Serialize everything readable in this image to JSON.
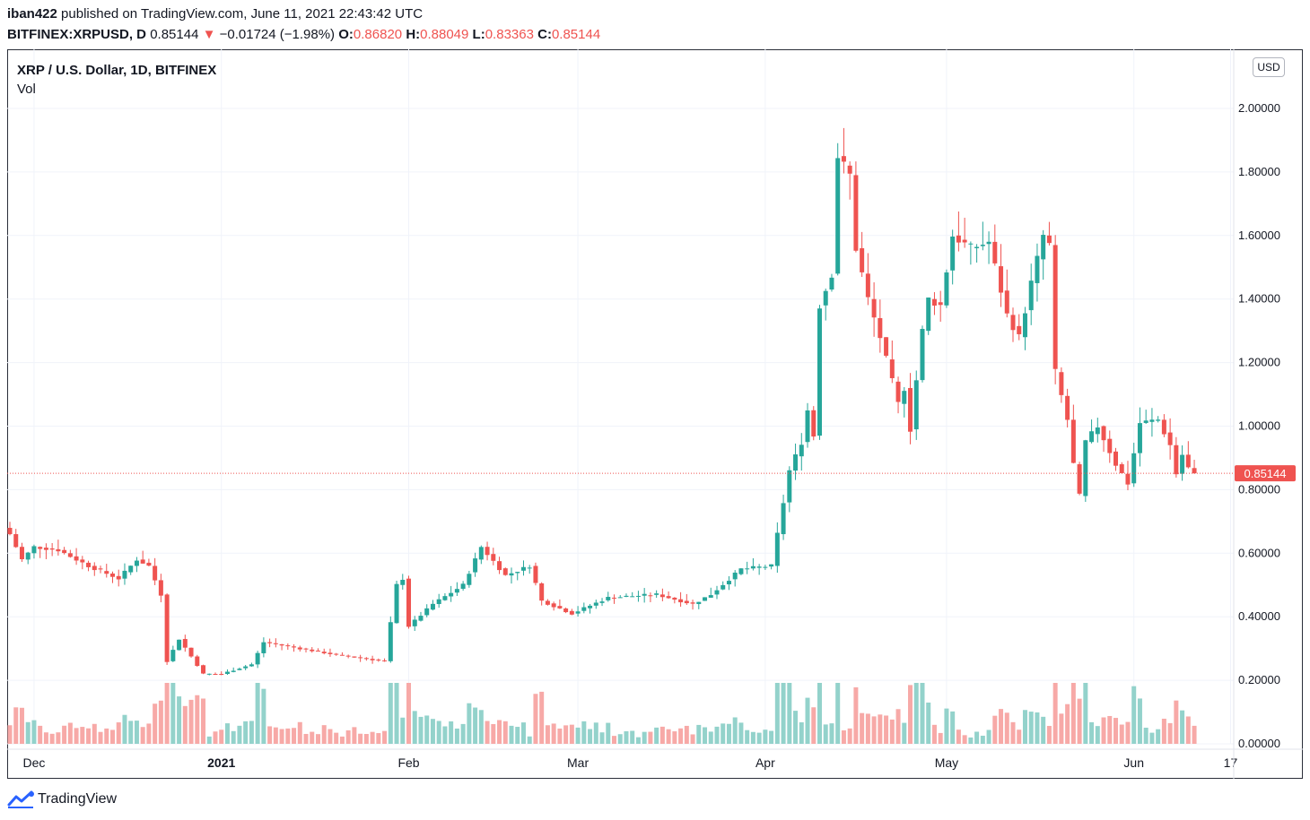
{
  "header": {
    "author": "iban422",
    "published": "published on TradingView.com, June 11, 2021 22:43:42 UTC",
    "symbol": "BITFINEX:XRPUSD, D",
    "last": "0.85144",
    "arrow": "▼",
    "change": "−0.01724 (−1.98%)",
    "open_label": "O:",
    "open": "0.86820",
    "high_label": "H:",
    "high": "0.88049",
    "low_label": "L:",
    "low": "0.83363",
    "close_label": "C:",
    "close": "0.85144"
  },
  "legend": {
    "title": "XRP / U.S. Dollar, 1D, BITFINEX",
    "vol": "Vol"
  },
  "currency_button": "USD",
  "price_tag": "0.85144",
  "footer": {
    "brand": "TradingView"
  },
  "colors": {
    "up": "#26a69a",
    "down": "#ef5350",
    "vol_up": "#93d2cb",
    "vol_down": "#f7a9a7",
    "grid": "#f0f3fa"
  },
  "chart_data": {
    "type": "candlestick",
    "title": "XRP / U.S. Dollar, 1D, BITFINEX",
    "ylim": [
      0,
      2.1
    ],
    "yticks": [
      "2.00000",
      "1.80000",
      "1.60000",
      "1.40000",
      "1.20000",
      "1.00000",
      "0.80000",
      "0.60000",
      "0.40000",
      "0.20000",
      "0.00000"
    ],
    "xticks": [
      {
        "label": "Dec",
        "date": "2020-12-01"
      },
      {
        "label": "2021",
        "date": "2021-01-01"
      },
      {
        "label": "Feb",
        "date": "2021-02-01"
      },
      {
        "label": "Mar",
        "date": "2021-03-01"
      },
      {
        "label": "Apr",
        "date": "2021-04-01"
      },
      {
        "label": "May",
        "date": "2021-05-01"
      },
      {
        "label": "Jun",
        "date": "2021-06-01"
      },
      {
        "label": "17",
        "date": "2021-06-17"
      }
    ],
    "start_date": "2020-11-27",
    "last_price": 0.85144,
    "grid": true,
    "anchors": [
      {
        "date": "2020-11-27",
        "close": 0.66
      },
      {
        "date": "2020-11-29",
        "close": 0.58
      },
      {
        "date": "2020-12-01",
        "close": 0.62
      },
      {
        "date": "2020-12-05",
        "close": 0.61
      },
      {
        "date": "2020-12-10",
        "close": 0.56
      },
      {
        "date": "2020-12-15",
        "close": 0.52
      },
      {
        "date": "2020-12-18",
        "close": 0.58
      },
      {
        "date": "2020-12-20",
        "close": 0.56
      },
      {
        "date": "2020-12-22",
        "close": 0.47
      },
      {
        "date": "2020-12-23",
        "close": 0.26
      },
      {
        "date": "2020-12-25",
        "close": 0.33
      },
      {
        "date": "2020-12-29",
        "close": 0.22
      },
      {
        "date": "2021-01-01",
        "close": 0.22
      },
      {
        "date": "2021-01-06",
        "close": 0.25
      },
      {
        "date": "2021-01-08",
        "close": 0.32
      },
      {
        "date": "2021-01-14",
        "close": 0.3
      },
      {
        "date": "2021-01-20",
        "close": 0.28
      },
      {
        "date": "2021-01-28",
        "close": 0.26
      },
      {
        "date": "2021-01-30",
        "close": 0.5
      },
      {
        "date": "2021-01-31",
        "close": 0.52
      },
      {
        "date": "2021-02-01",
        "close": 0.37
      },
      {
        "date": "2021-02-05",
        "close": 0.44
      },
      {
        "date": "2021-02-10",
        "close": 0.5
      },
      {
        "date": "2021-02-13",
        "close": 0.62
      },
      {
        "date": "2021-02-17",
        "close": 0.53
      },
      {
        "date": "2021-02-21",
        "close": 0.56
      },
      {
        "date": "2021-02-23",
        "close": 0.45
      },
      {
        "date": "2021-02-28",
        "close": 0.41
      },
      {
        "date": "2021-03-06",
        "close": 0.46
      },
      {
        "date": "2021-03-14",
        "close": 0.47
      },
      {
        "date": "2021-03-20",
        "close": 0.44
      },
      {
        "date": "2021-03-23",
        "close": 0.47
      },
      {
        "date": "2021-03-28",
        "close": 0.55
      },
      {
        "date": "2021-04-02",
        "close": 0.56
      },
      {
        "date": "2021-04-05",
        "close": 0.86
      },
      {
        "date": "2021-04-07",
        "close": 0.95
      },
      {
        "date": "2021-04-08",
        "close": 1.05
      },
      {
        "date": "2021-04-09",
        "close": 0.97
      },
      {
        "date": "2021-04-10",
        "close": 1.38
      },
      {
        "date": "2021-04-12",
        "close": 1.48
      },
      {
        "date": "2021-04-13",
        "close": 1.85
      },
      {
        "date": "2021-04-15",
        "close": 1.79
      },
      {
        "date": "2021-04-16",
        "close": 1.56
      },
      {
        "date": "2021-04-18",
        "close": 1.4
      },
      {
        "date": "2021-04-20",
        "close": 1.28
      },
      {
        "date": "2021-04-23",
        "close": 1.07
      },
      {
        "date": "2021-04-24",
        "close": 1.12
      },
      {
        "date": "2021-04-25",
        "close": 0.99
      },
      {
        "date": "2021-04-27",
        "close": 1.3
      },
      {
        "date": "2021-04-28",
        "close": 1.4
      },
      {
        "date": "2021-04-30",
        "close": 1.38
      },
      {
        "date": "2021-05-02",
        "close": 1.6
      },
      {
        "date": "2021-05-05",
        "close": 1.56
      },
      {
        "date": "2021-05-08",
        "close": 1.58
      },
      {
        "date": "2021-05-11",
        "close": 1.35
      },
      {
        "date": "2021-05-13",
        "close": 1.28
      },
      {
        "date": "2021-05-15",
        "close": 1.45
      },
      {
        "date": "2021-05-17",
        "close": 1.6
      },
      {
        "date": "2021-05-18",
        "close": 1.57
      },
      {
        "date": "2021-05-19",
        "close": 1.17
      },
      {
        "date": "2021-05-21",
        "close": 1.02
      },
      {
        "date": "2021-05-22",
        "close": 0.88
      },
      {
        "date": "2021-05-23",
        "close": 0.78
      },
      {
        "date": "2021-05-24",
        "close": 0.95
      },
      {
        "date": "2021-05-26",
        "close": 1.0
      },
      {
        "date": "2021-05-29",
        "close": 0.88
      },
      {
        "date": "2021-05-31",
        "close": 0.82
      },
      {
        "date": "2021-06-02",
        "close": 1.01
      },
      {
        "date": "2021-06-05",
        "close": 1.02
      },
      {
        "date": "2021-06-07",
        "close": 0.94
      },
      {
        "date": "2021-06-08",
        "close": 0.85
      },
      {
        "date": "2021-06-09",
        "close": 0.91
      },
      {
        "date": "2021-06-10",
        "close": 0.868
      },
      {
        "date": "2021-06-11",
        "close": 0.85144
      }
    ]
  }
}
